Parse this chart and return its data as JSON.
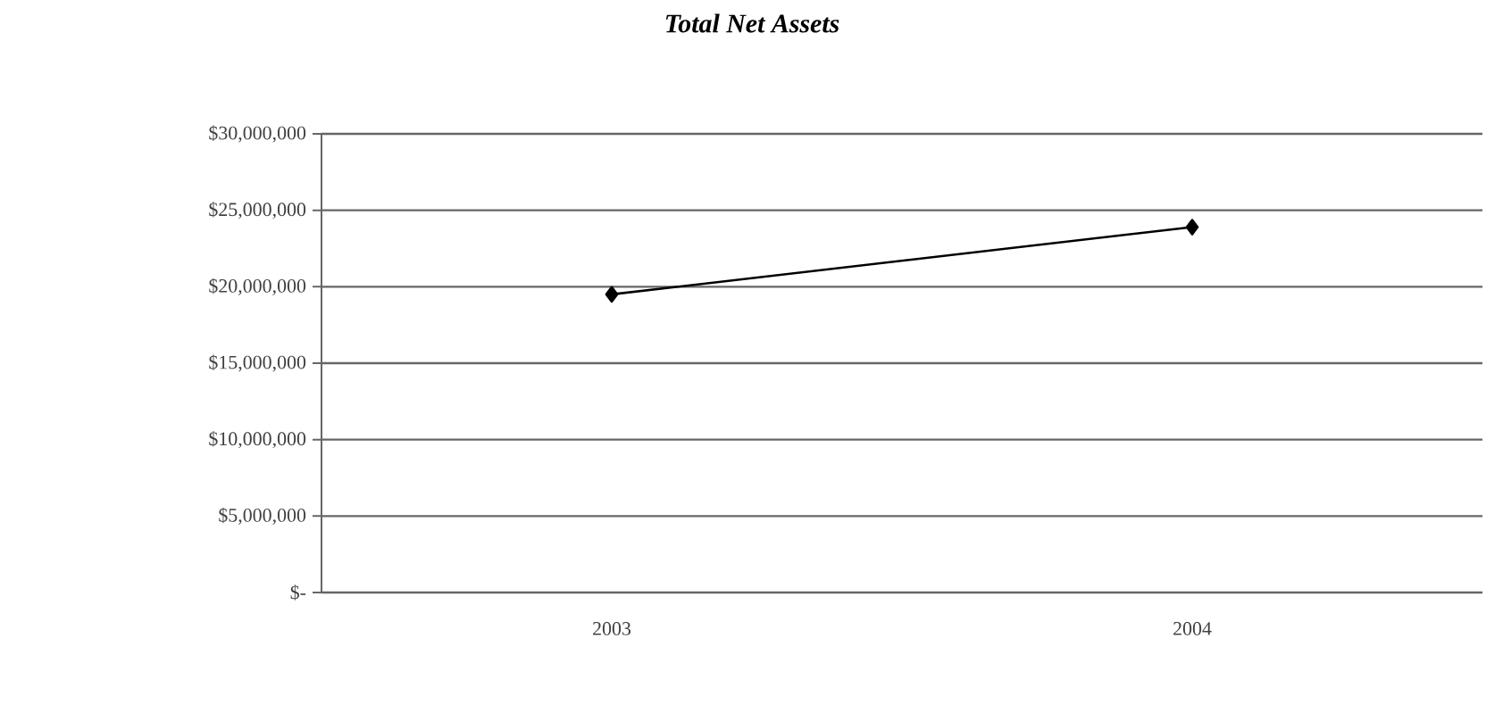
{
  "chart_data": {
    "type": "line",
    "title": "Total Net Assets",
    "categories": [
      "2003",
      "2004"
    ],
    "series": [
      {
        "color": "#000000",
        "values": [
          19500000,
          23900000
        ]
      }
    ],
    "ylim": [
      0,
      30000000
    ],
    "yticks": [
      {
        "value": 0,
        "label": "$-"
      },
      {
        "value": 5000000,
        "label": "$5,000,000"
      },
      {
        "value": 10000000,
        "label": "$10,000,000"
      },
      {
        "value": 15000000,
        "label": "$15,000,000"
      },
      {
        "value": 20000000,
        "label": "$20,000,000"
      },
      {
        "value": 25000000,
        "label": "$25,000,000"
      },
      {
        "value": 30000000,
        "label": "$30,000,000"
      }
    ],
    "grid": "y",
    "marker": "diamond",
    "line_style": "solid"
  }
}
